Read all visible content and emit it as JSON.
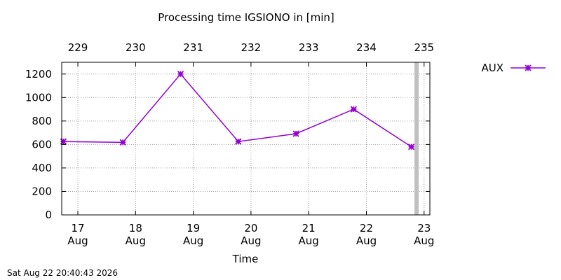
{
  "footer": {
    "timestamp": "Sat Aug 22 20:40:43 2026"
  },
  "chart_data": {
    "type": "line",
    "title": "Processing time IGSIONO in [min]",
    "xlabel": "Time",
    "ylabel": "",
    "ylim": [
      0,
      1300
    ],
    "xlim": [
      16.72,
      23.1
    ],
    "yticks": [
      0,
      200,
      400,
      600,
      800,
      1000,
      1200
    ],
    "bottom_ticks": [
      {
        "x": 17,
        "day": "17",
        "month": "Aug"
      },
      {
        "x": 18,
        "day": "18",
        "month": "Aug"
      },
      {
        "x": 19,
        "day": "19",
        "month": "Aug"
      },
      {
        "x": 20,
        "day": "20",
        "month": "Aug"
      },
      {
        "x": 21,
        "day": "21",
        "month": "Aug"
      },
      {
        "x": 22,
        "day": "22",
        "month": "Aug"
      },
      {
        "x": 23,
        "day": "23",
        "month": "Aug"
      }
    ],
    "top_ticks": [
      {
        "x": 17,
        "label": "229"
      },
      {
        "x": 18,
        "label": "230"
      },
      {
        "x": 19,
        "label": "231"
      },
      {
        "x": 20,
        "label": "232"
      },
      {
        "x": 21,
        "label": "233"
      },
      {
        "x": 22,
        "label": "234"
      },
      {
        "x": 23,
        "label": "235"
      }
    ],
    "grid": true,
    "legend": {
      "placement": "top-right"
    },
    "current_time_marker": {
      "x": 22.87,
      "color": "#c0c0c0"
    },
    "series": [
      {
        "name": "AUX",
        "color": "#9400d3",
        "x": [
          16.75,
          17.78,
          18.78,
          19.78,
          20.78,
          21.78,
          22.78
        ],
        "y": [
          625,
          618,
          1200,
          625,
          692,
          900,
          580
        ]
      }
    ]
  }
}
